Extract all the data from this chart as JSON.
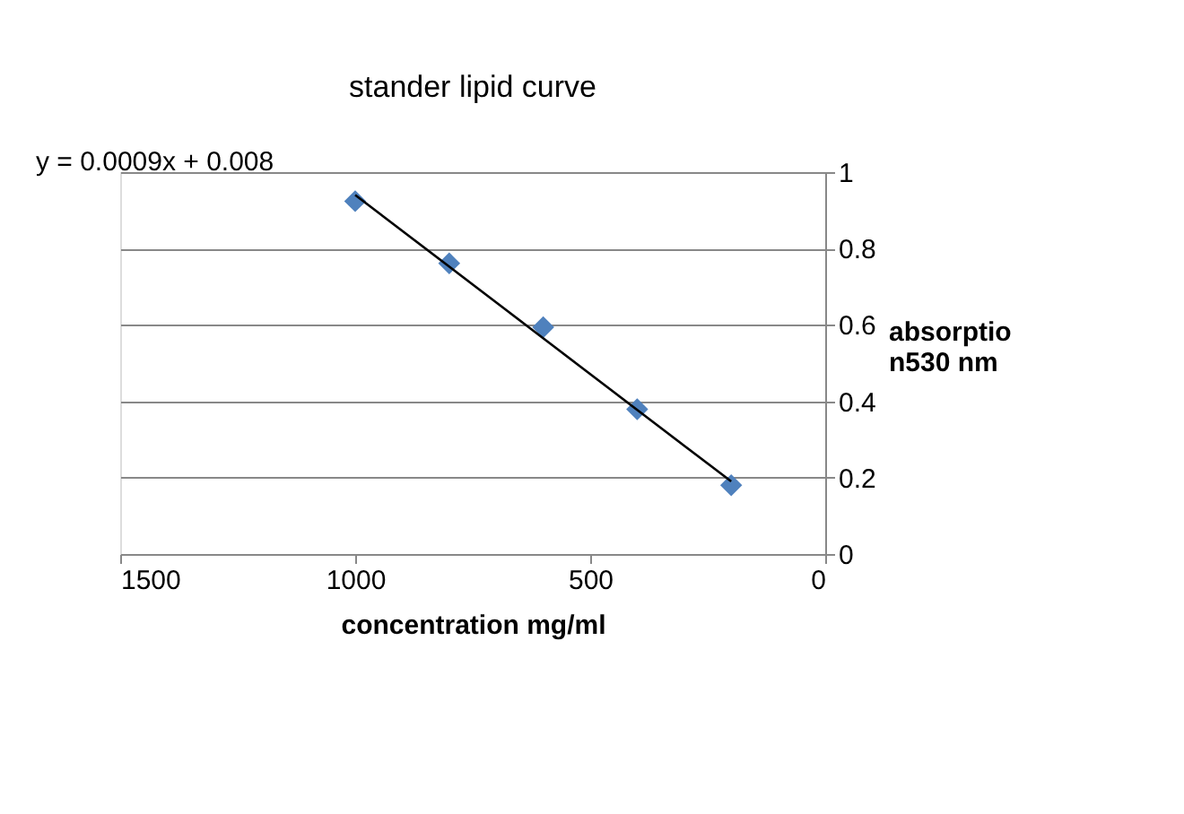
{
  "chart_data": {
    "type": "scatter",
    "title": "stander lipid curve",
    "xlabel": "concentration mg/ml",
    "ylabel": "absorption530 nm",
    "annotations": [
      "y = 0.0009x + 0.008"
    ],
    "series": [
      {
        "color": "#4f81bd",
        "marker": "diamond",
        "x": [
          1000,
          800,
          600,
          400,
          200
        ],
        "values": [
          0.924,
          0.761,
          0.594,
          0.379,
          0.18
        ]
      },
      {
        "type": "line",
        "color": "#000000",
        "marker": "none",
        "line_style": "solid",
        "x": [
          1000,
          200
        ],
        "values": [
          0.94,
          0.19
        ]
      }
    ],
    "xlim": [
      1500,
      0
    ],
    "xticks": [
      1500,
      1000,
      500,
      0
    ],
    "ylim": [
      0,
      1
    ],
    "yticks": [
      0,
      0.2,
      0.4,
      0.6,
      0.8,
      1
    ],
    "grid": "y"
  }
}
